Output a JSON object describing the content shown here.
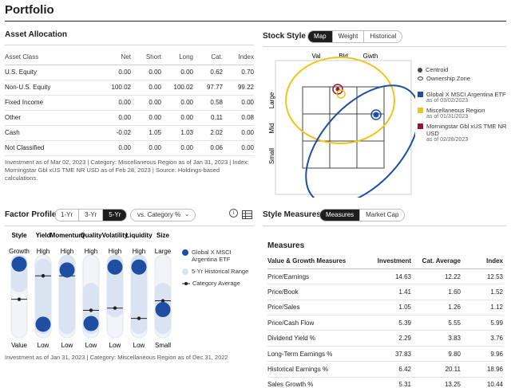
{
  "page_title": "Portfolio",
  "asset_allocation": {
    "title": "Asset Allocation",
    "headers": [
      "Asset Class",
      "Net",
      "Short",
      "Long",
      "Cat.",
      "Index"
    ],
    "rows": [
      [
        "U.S. Equity",
        "0.00",
        "0.00",
        "0.00",
        "0.62",
        "0.70"
      ],
      [
        "Non-U.S. Equity",
        "100.02",
        "0.00",
        "100.02",
        "97.77",
        "99.22"
      ],
      [
        "Fixed Income",
        "0.00",
        "0.00",
        "0.00",
        "0.58",
        "0.00"
      ],
      [
        "Other",
        "0.00",
        "0.00",
        "0.00",
        "0.11",
        "0.08"
      ],
      [
        "Cash",
        "-0.02",
        "1.05",
        "1.03",
        "2.02",
        "0.00"
      ],
      [
        "Not Classified",
        "0.00",
        "0.00",
        "0.00",
        "0.06",
        "0.00"
      ]
    ],
    "note": "Investment as of Mar 02, 2023 | Category: Miscellaneous Region as of Jan 31, 2023 | Index: Morningstar Gbl xUS TME NR USD as of Feb 28, 2023 | Source: Holdings-based calculations."
  },
  "stock_style": {
    "title": "Stock Style",
    "tabs": [
      "Map",
      "Weight",
      "Historical"
    ],
    "selected_tab": "Map",
    "col_labels": [
      "Val",
      "Bld",
      "Gwth"
    ],
    "row_labels": [
      "Large",
      "Mid",
      "Small"
    ],
    "legend": {
      "centroid": "Centroid",
      "ownership_zone": "Ownership Zone",
      "items": [
        {
          "name": "Global X MSCI Argentina ETF",
          "date": "as of 03/02/2023",
          "color": "#1f4fa3"
        },
        {
          "name": "Miscellaneous Region",
          "date": "as of 01/31/2023",
          "color": "#f0c419"
        },
        {
          "name": "Morningstar Gbl xUS TME NR USD",
          "date": "as of 02/28/2023",
          "color": "#a0142a"
        }
      ]
    }
  },
  "factor_profile": {
    "title": "Factor Profile",
    "periods": [
      "1-Yr",
      "3-Yr",
      "5-Yr"
    ],
    "selected_period": "5-Yr",
    "compare_select": "vs. Category %",
    "info_icon": "info-icon",
    "table_icon": "table-icon",
    "columns": [
      {
        "label": "Style",
        "top": "Growth",
        "bottom": "Value",
        "fund": 0.94,
        "hist_low": 0.62,
        "hist_high": 1.0,
        "cat": 0.46
      },
      {
        "label": "Yield",
        "top": "High",
        "bottom": "Low",
        "fund": 0.12,
        "hist_low": 0.05,
        "hist_high": 0.95,
        "cat": 0.78
      },
      {
        "label": "Momentum",
        "top": "High",
        "bottom": "Low",
        "fund": 0.86,
        "hist_low": 0.05,
        "hist_high": 1.0,
        "cat": 0.78
      },
      {
        "label": "Quality",
        "top": "High",
        "bottom": "Low",
        "fund": 0.13,
        "hist_low": 0.05,
        "hist_high": 0.62,
        "cat": 0.31
      },
      {
        "label": "Volatility",
        "top": "High",
        "bottom": "Low",
        "fund": 0.9,
        "hist_low": 0.28,
        "hist_high": 1.0,
        "cat": 0.34
      },
      {
        "label": "Liquidity",
        "top": "High",
        "bottom": "Low",
        "fund": 0.9,
        "hist_low": 0.05,
        "hist_high": 1.0,
        "cat": 0.2
      },
      {
        "label": "Size",
        "top": "Large",
        "bottom": "Small",
        "fund": 0.32,
        "hist_low": 0.05,
        "hist_high": 0.62,
        "cat": 0.44
      }
    ],
    "legend": [
      {
        "text": "Global X MSCI Argentina ETF",
        "kind": "fund"
      },
      {
        "text": "5-Yr Historical Range",
        "kind": "range"
      },
      {
        "text": "Category Average",
        "kind": "cat"
      }
    ],
    "note": "Investment as of Jan 31, 2023 | Category: Miscellaneous Region as of Dec 31, 2022"
  },
  "style_measures": {
    "title": "Style Measures",
    "tabs": [
      "Measures",
      "Market Cap"
    ],
    "selected_tab": "Measures",
    "subtitle": "Measures",
    "headers": [
      "Value & Growth Measures",
      "Investment",
      "Cat. Average",
      "Index"
    ],
    "rows": [
      [
        "Price/Earnings",
        "14.63",
        "12.22",
        "12.53"
      ],
      [
        "Price/Book",
        "1.41",
        "1.60",
        "1.52"
      ],
      [
        "Price/Sales",
        "1.05",
        "1.26",
        "1.12"
      ],
      [
        "Price/Cash Flow",
        "5.39",
        "5.55",
        "5.99"
      ],
      [
        "Dividend Yield %",
        "2.29",
        "3.83",
        "3.76"
      ],
      [
        "Long-Term Earnings %",
        "37.83",
        "9.80",
        "9.96"
      ],
      [
        "Historical Earnings %",
        "6.42",
        "20.11",
        "18.96"
      ],
      [
        "Sales Growth %",
        "5.31",
        "13.25",
        "10.44"
      ]
    ]
  },
  "colors": {
    "fund": "#1f4fa3",
    "range": "#d9e3f1",
    "category_zone": "#f0c419",
    "index": "#a0142a"
  }
}
